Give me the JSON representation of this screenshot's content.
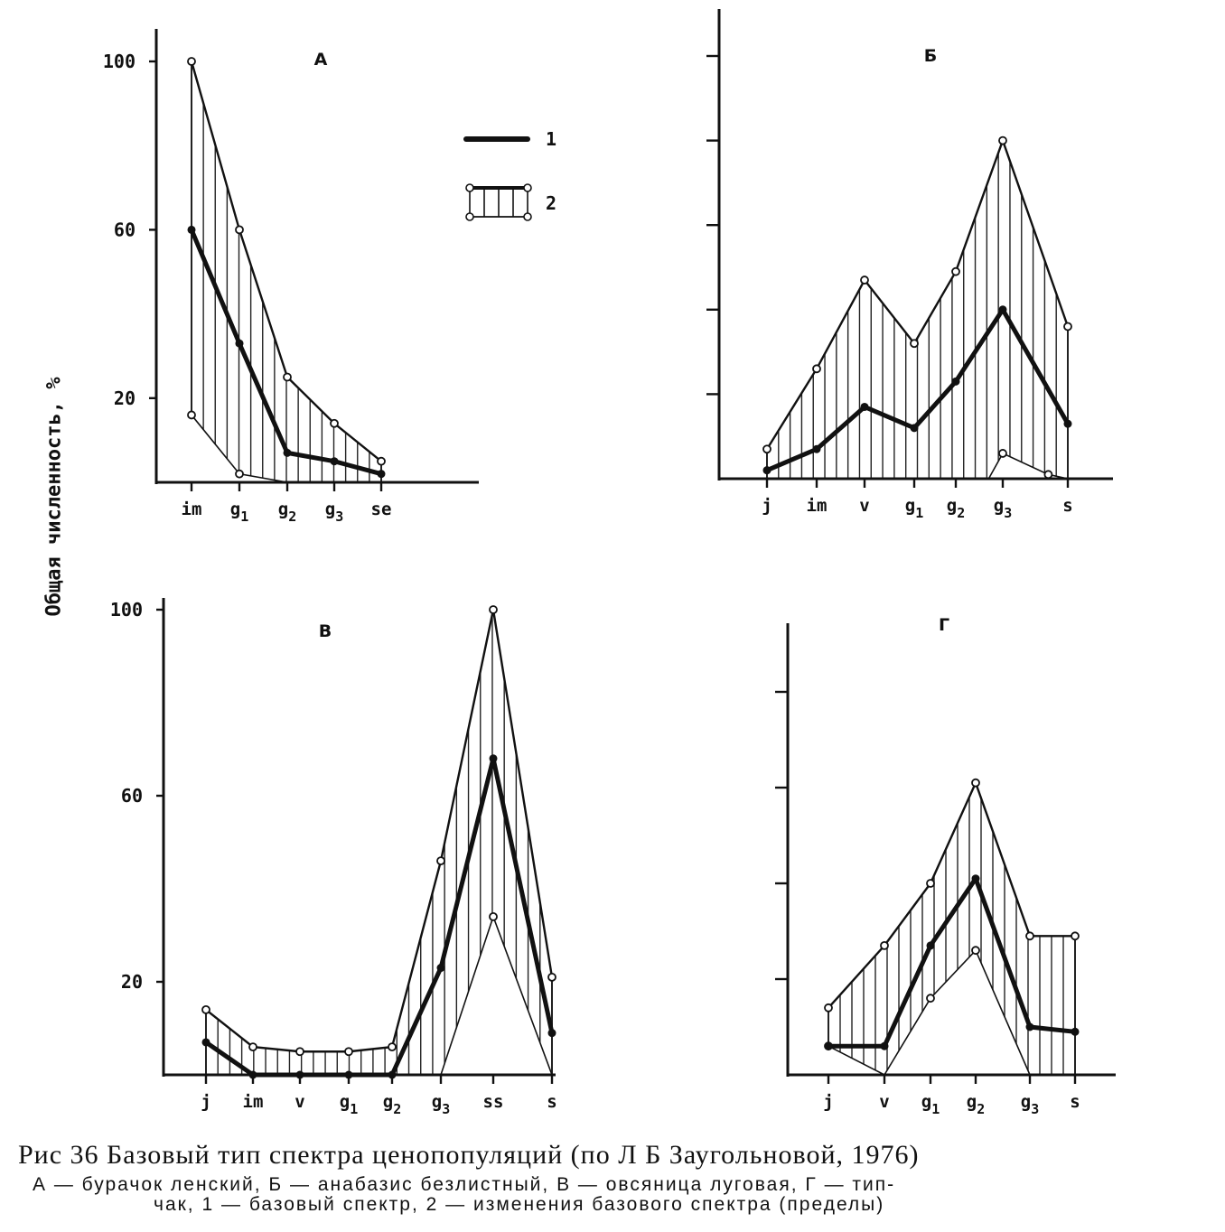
{
  "figure": {
    "y_axis_title": "Общая численность, %",
    "caption": {
      "line1": "Рис  36  Базовый  тип  спектра  ценопопуляций  (по  Л  Б  Заугольновой, 1976)",
      "line2": "А — бурачок  ленский,  Б — анабазис  безлистный,  В — овсяница  луговая,  Г — тип-",
      "line3": "чак,  1 — базовый  спектр,  2 — изменения  базового  спектра  (пределы)"
    },
    "legend": [
      {
        "label": "1",
        "style": "thick-line"
      },
      {
        "label": "2",
        "style": "hatched-band"
      }
    ]
  },
  "chart_data": [
    {
      "type": "area",
      "title": "А",
      "categories": [
        "im",
        "g1",
        "g2",
        "g3",
        "se"
      ],
      "ylim": [
        0,
        105
      ],
      "yticks": [
        20,
        60,
        100
      ],
      "yticklabels": [
        "20",
        "60",
        "100"
      ],
      "series": [
        {
          "name": "1",
          "x": [
            0,
            1,
            2,
            3,
            4
          ],
          "values": [
            60,
            33,
            7,
            5,
            2
          ]
        },
        {
          "name": "2 upper",
          "x": [
            0,
            1,
            2,
            3,
            4
          ],
          "values": [
            100,
            60,
            25,
            14,
            5
          ]
        },
        {
          "name": "2 lower",
          "x": [
            0,
            1,
            2,
            3,
            4
          ],
          "values": [
            16,
            2,
            0,
            0,
            0
          ]
        }
      ]
    },
    {
      "type": "area",
      "title": "Б",
      "categories": [
        "j",
        "im",
        "v",
        "g1",
        "g2",
        "g3",
        "s"
      ],
      "ylim": [
        0,
        105
      ],
      "yticks": [
        20,
        40,
        60,
        80,
        100
      ],
      "yticklabels": [],
      "series": [
        {
          "name": "1",
          "x": [
            0,
            1,
            2,
            3,
            4,
            5,
            6
          ],
          "values": [
            2,
            7,
            17,
            12,
            23,
            40,
            13
          ]
        },
        {
          "name": "2 upper",
          "x": [
            0,
            1,
            2,
            3,
            4,
            5,
            6
          ],
          "values": [
            7,
            26,
            47,
            32,
            49,
            80,
            36
          ]
        },
        {
          "name": "2 lower",
          "x": [
            0,
            1,
            2,
            3,
            4,
            4.7,
            5,
            5.7,
            6
          ],
          "values": [
            0,
            0,
            0,
            0,
            0,
            0,
            6,
            1,
            0
          ]
        }
      ]
    },
    {
      "type": "area",
      "title": "В",
      "categories": [
        "j",
        "im",
        "v",
        "g1",
        "g2",
        "g3",
        "ss",
        "s"
      ],
      "ylim": [
        0,
        100
      ],
      "yticks": [
        20,
        60,
        100
      ],
      "yticklabels": [
        "20",
        "60",
        "100"
      ],
      "series": [
        {
          "name": "1",
          "x": [
            0,
            1,
            2,
            3,
            4,
            5,
            6,
            7
          ],
          "values": [
            7,
            0,
            0,
            0,
            0,
            23,
            68,
            9
          ]
        },
        {
          "name": "2 upper",
          "x": [
            0,
            1,
            2,
            3,
            4,
            5,
            6,
            7
          ],
          "values": [
            14,
            6,
            5,
            5,
            6,
            46,
            100,
            21
          ]
        },
        {
          "name": "2 lower",
          "x": [
            0,
            1,
            2,
            3,
            4,
            5,
            6,
            7
          ],
          "values": [
            0,
            0,
            0,
            0,
            0,
            0,
            34,
            0
          ]
        }
      ]
    },
    {
      "type": "area",
      "title": "Г",
      "categories": [
        "j",
        "v",
        "g1",
        "g2",
        "g3",
        "s"
      ],
      "ylim": [
        0,
        100
      ],
      "yticks": [
        20,
        40,
        60,
        80
      ],
      "yticklabels": [],
      "series": [
        {
          "name": "1",
          "x": [
            0,
            1,
            2,
            3,
            4,
            5
          ],
          "values": [
            6,
            6,
            27,
            41,
            10,
            9
          ]
        },
        {
          "name": "2 upper",
          "x": [
            0,
            1,
            2,
            3,
            4,
            5
          ],
          "values": [
            14,
            27,
            40,
            61,
            29,
            29
          ]
        },
        {
          "name": "2 lower",
          "x": [
            0,
            1,
            2,
            3,
            4,
            5
          ],
          "values": [
            6,
            0,
            16,
            26,
            0,
            0
          ]
        }
      ]
    }
  ]
}
